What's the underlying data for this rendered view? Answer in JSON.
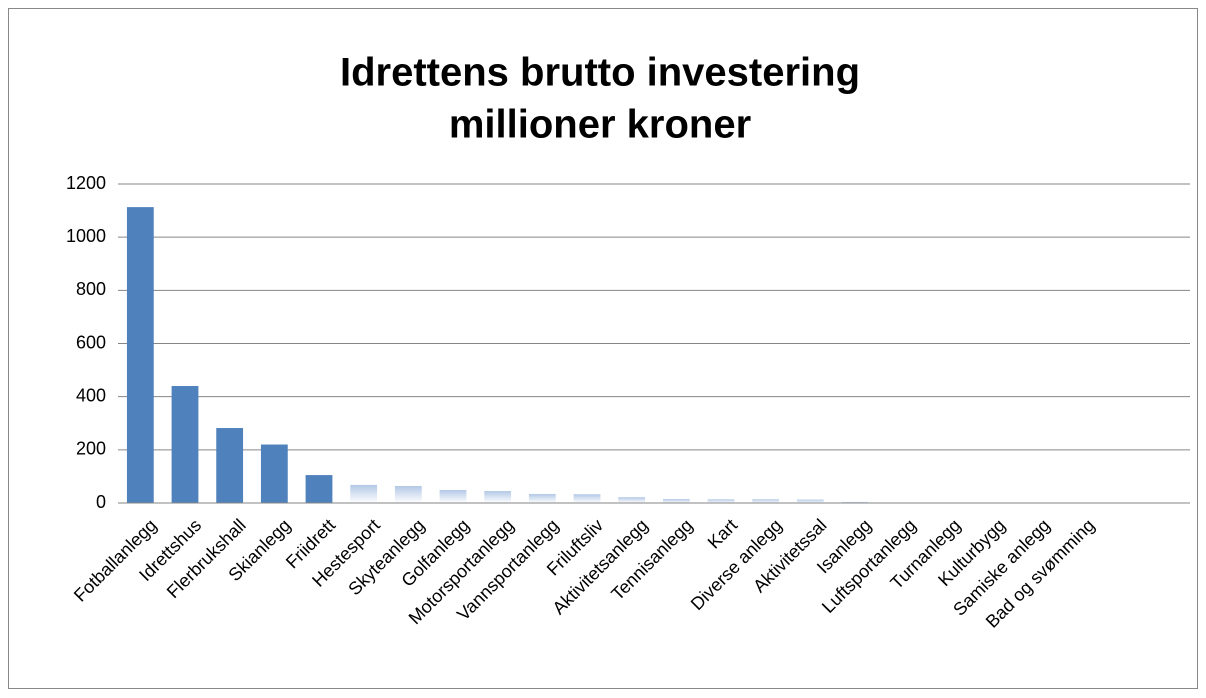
{
  "chart_data": {
    "type": "bar",
    "title": [
      "Idrettens brutto investering",
      "millioner kroner"
    ],
    "categories": [
      "Fotballanlegg",
      "Idrettshus",
      "Flerbrukshall",
      "Skianlegg",
      "Friidrett",
      "Hestesport",
      "Skyteanlegg",
      "Golfanlegg",
      "Motorsportanlegg",
      "Vannsportanlegg",
      "Friluftsliv",
      "Aktivitetsanlegg",
      "Tennisanlegg",
      "Kart",
      "Diverse anlegg",
      "Aktivitetssal",
      "Isanlegg",
      "Luftsportanlegg",
      "Turnanlegg",
      "Kulturbygg",
      "Samiske anlegg",
      "Bad og svømming",
      null,
      null
    ],
    "values": [
      1113,
      440,
      282,
      220,
      105,
      68,
      64,
      49,
      45,
      34,
      33,
      22,
      15,
      14,
      14,
      13,
      4,
      0,
      0,
      0,
      0,
      0,
      null,
      null
    ],
    "colors": [
      "#4f81bd",
      "#4f81bd",
      "#4f81bd",
      "#4f81bd",
      "#4f81bd",
      "#b3c8e6",
      "#b3c8e6",
      "#b3c8e6",
      "#b3c8e6",
      "#b3c8e6",
      "#b3c8e6",
      "#b3c8e6",
      "#b3c8e6",
      "#b3c8e6",
      "#b3c8e6",
      "#b3c8e6",
      "#b3c8e6",
      "#b3c8e6",
      "#b3c8e6",
      "#b3c8e6",
      "#b3c8e6",
      "#b3c8e6",
      "#b3c8e6",
      "#b3c8e6"
    ],
    "ylim": [
      0,
      1200
    ],
    "yticks": [
      0,
      200,
      400,
      600,
      800,
      1000,
      1200
    ],
    "grid": true
  }
}
